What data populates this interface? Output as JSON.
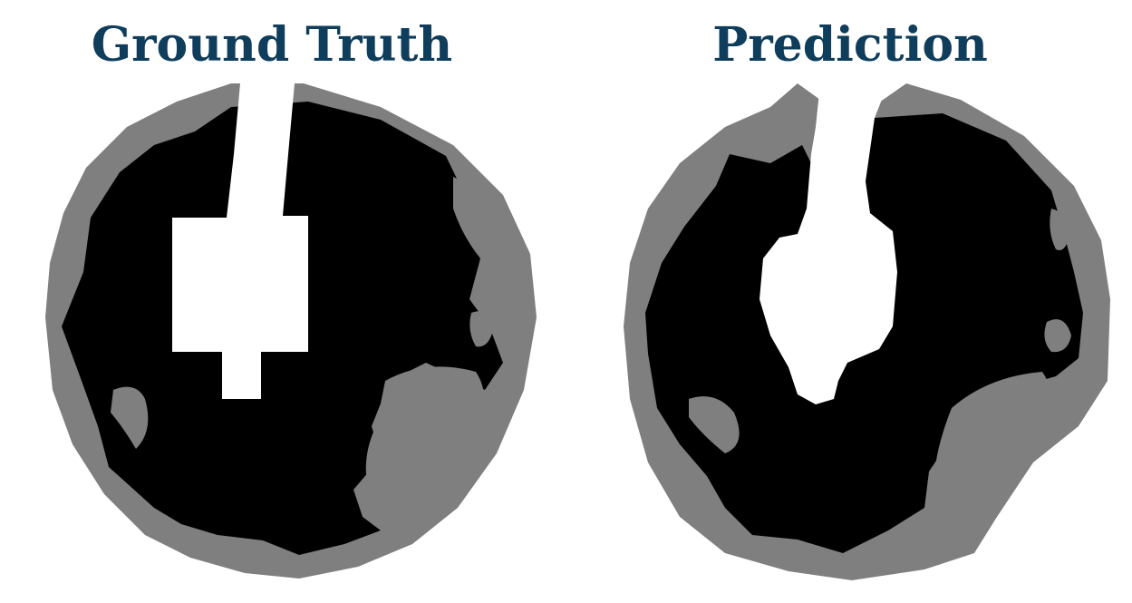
{
  "panels": [
    {
      "title": "Ground Truth"
    },
    {
      "title": "Prediction"
    }
  ],
  "colors": {
    "title": "#0f3d5c",
    "background": "#ffffff",
    "class_black": "#000000",
    "class_gray": "#7f7f7f",
    "class_white": "#ffffff"
  }
}
